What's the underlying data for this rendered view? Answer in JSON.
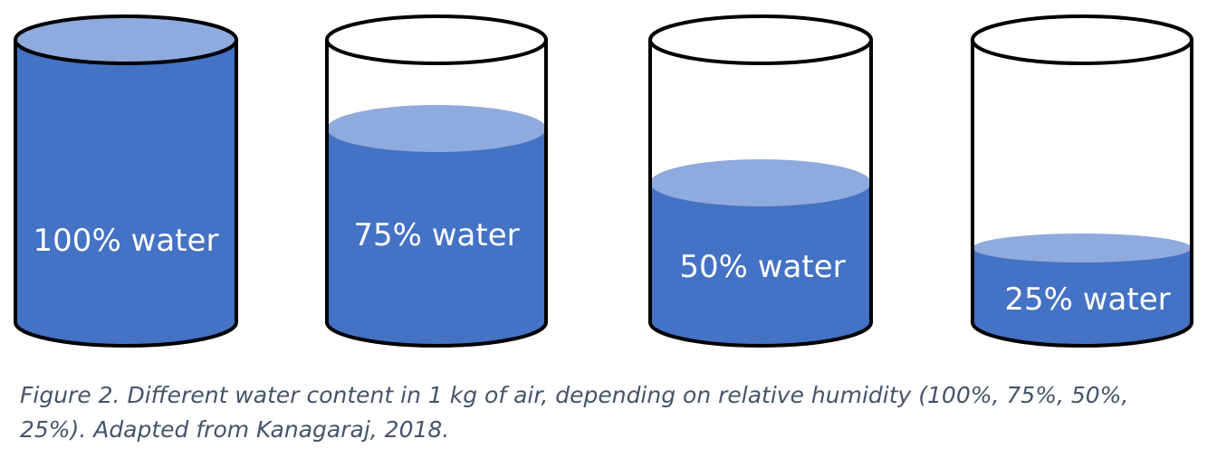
{
  "colors": {
    "water": "#4472c4",
    "water_surface": "#8faadc",
    "outline": "#000000",
    "caption": "#44546a"
  },
  "cylinders": [
    {
      "label": "100% water",
      "fill_fraction": 1.0
    },
    {
      "label": "75% water",
      "fill_fraction": 0.75
    },
    {
      "label": "50% water",
      "fill_fraction": 0.5
    },
    {
      "label": "25% water",
      "fill_fraction": 0.25
    }
  ],
  "caption": "Figure 2. Different water content in 1 kg of air, depending on relative humidity (100%, 75%, 50%, 25%). Adapted from Kanagaraj, 2018."
}
